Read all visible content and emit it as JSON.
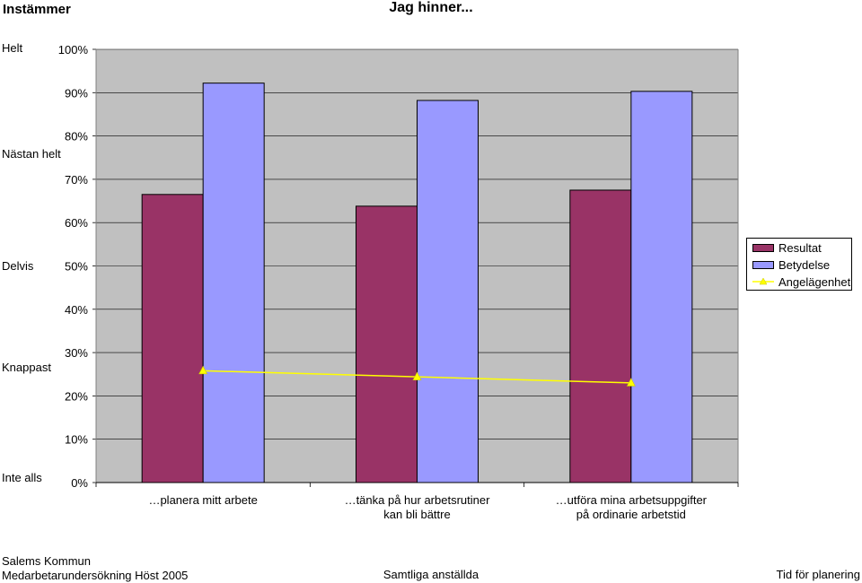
{
  "header": {
    "left_label": "Instämmer",
    "title": "Jag hinner..."
  },
  "scale_labels": {
    "helt": "Helt",
    "nastan_helt": "Nästan helt",
    "delvis": "Delvis",
    "knappast": "Knappast",
    "inte_alls": "Inte alls"
  },
  "footer": {
    "org": "Salems Kommun",
    "survey": "Medarbetarundersökning Höst 2005",
    "group": "Samtliga anställda",
    "topic": "Tid för planering"
  },
  "colors": {
    "plot_bg": "#c0c0c0",
    "resultat": "#993366",
    "betydelse": "#9999ff",
    "angelagenhet": "#ffff00"
  },
  "chart_data": {
    "type": "bar",
    "title": "Jag hinner...",
    "categories": [
      "…planera mitt arbete",
      "…tänka på hur arbetsrutiner kan bli bättre",
      "…utföra mina arbetsuppgifter på ordinarie arbetstid"
    ],
    "series": [
      {
        "name": "Resultat",
        "type": "bar",
        "values": [
          66.5,
          63.8,
          67.5
        ]
      },
      {
        "name": "Betydelse",
        "type": "bar",
        "values": [
          92.2,
          88.2,
          90.3
        ]
      },
      {
        "name": "Angelägenhet",
        "type": "line",
        "marker": "triangle",
        "values": [
          25.8,
          24.4,
          23.0
        ]
      }
    ],
    "yticks": [
      "0%",
      "10%",
      "20%",
      "30%",
      "40%",
      "50%",
      "60%",
      "70%",
      "80%",
      "90%",
      "100%"
    ],
    "ylim": [
      0,
      100
    ],
    "grid": true,
    "legend": "right"
  }
}
